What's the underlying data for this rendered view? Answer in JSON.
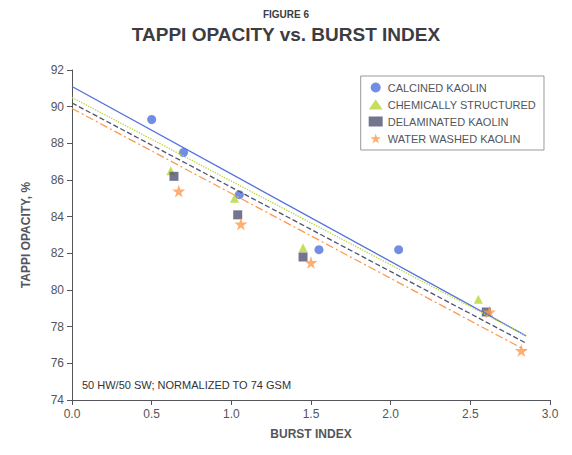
{
  "chart_data": {
    "type": "scatter",
    "title": "TAPPI OPACITY vs. BURST INDEX",
    "subtitle": "FIGURE 6",
    "x_label": "BURST INDEX",
    "y_label": "TAPPI OPACITY, %",
    "annotation": "50 HW/50 SW; NORMALIZED TO 74 GSM",
    "xlim": [
      0.0,
      3.0
    ],
    "ylim": [
      74,
      92
    ],
    "xticks": [
      {
        "value": 0.0,
        "label": "0.0"
      },
      0.5,
      {
        "value": 1.0,
        "label": "1.0"
      },
      1.5,
      {
        "value": 2.0,
        "label": "2.0"
      },
      2.5,
      {
        "value": 3.0,
        "label": "3.0"
      }
    ],
    "yticks": [
      74,
      76,
      78,
      80,
      82,
      84,
      86,
      88,
      90,
      92
    ],
    "grid": false,
    "legend": "upper right",
    "series": [
      {
        "name": "CALCINED KAOLIN",
        "marker": "circle",
        "line_style": "solid",
        "x": [
          0.5,
          0.7,
          1.05,
          1.55,
          2.05
        ],
        "values": [
          89.3,
          87.5,
          85.2,
          82.2,
          82.2
        ],
        "fit_x": [
          0.0,
          2.85
        ],
        "fit_y": [
          91.1,
          77.5
        ]
      },
      {
        "name": "CHEMICALLY STRUCTURED",
        "marker": "triangle",
        "line_style": "dotted",
        "x": [
          0.62,
          1.02,
          1.45,
          2.55
        ],
        "values": [
          86.5,
          85.0,
          82.3,
          79.5
        ],
        "fit_x": [
          0.0,
          2.85
        ],
        "fit_y": [
          90.5,
          77.5
        ]
      },
      {
        "name": "DELAMINATED KAOLIN",
        "marker": "square",
        "line_style": "dashed",
        "x": [
          0.64,
          1.04,
          1.45,
          2.6
        ],
        "values": [
          86.2,
          84.1,
          81.8,
          78.8
        ],
        "fit_x": [
          0.0,
          2.85
        ],
        "fit_y": [
          90.2,
          77.1
        ]
      },
      {
        "name": "WATER WASHED KAOLIN",
        "marker": "star",
        "line_style": "dashdot",
        "x": [
          0.67,
          1.06,
          1.5,
          2.62,
          2.82
        ],
        "values": [
          85.4,
          83.6,
          81.5,
          78.8,
          76.7
        ],
        "fit_x": [
          0.0,
          2.85
        ],
        "fit_y": [
          89.9,
          76.7
        ]
      }
    ]
  }
}
